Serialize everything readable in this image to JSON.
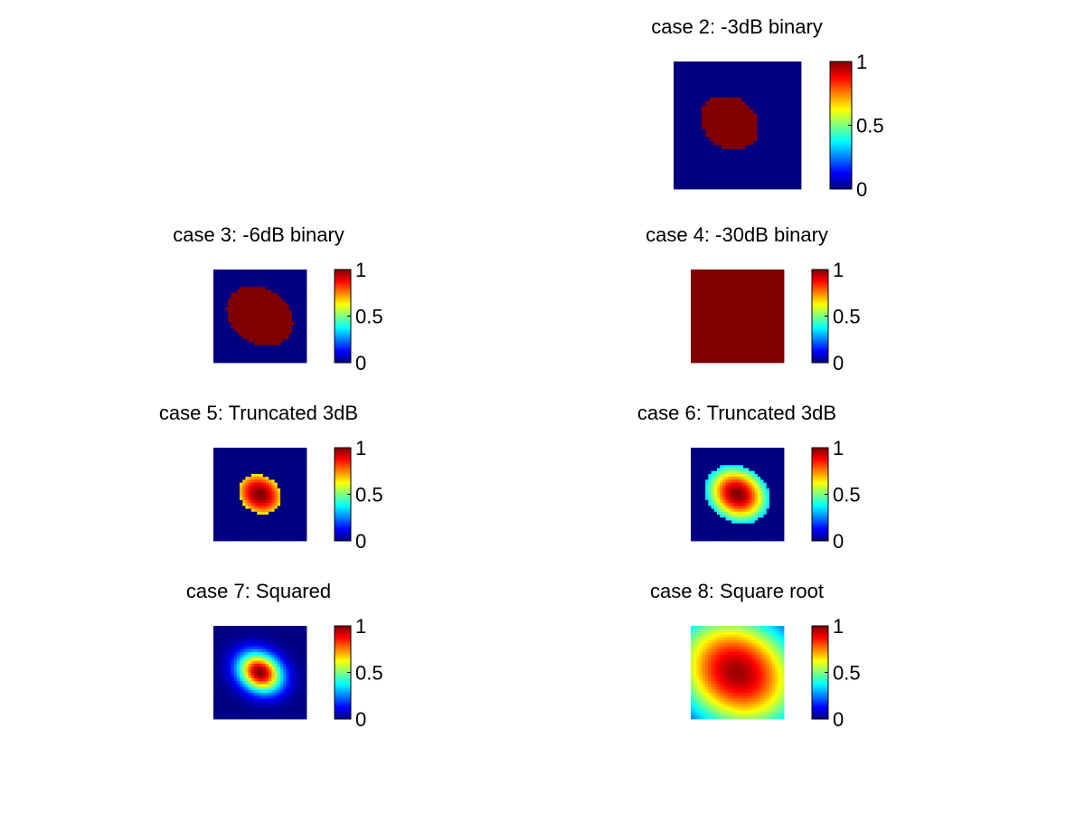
{
  "chart_data": [
    {
      "type": "heatmap",
      "title": "case 2: -3dB binary",
      "pattern": "binary ellipse, medium",
      "colorbar": {
        "colormap": "jet",
        "min": 0,
        "max": 1,
        "ticks": [
          "0",
          "0.5",
          "1"
        ]
      }
    },
    {
      "type": "heatmap",
      "title": "case 3: -6dB binary",
      "pattern": "binary ellipse, large",
      "colorbar": {
        "colormap": "jet",
        "min": 0,
        "max": 1,
        "ticks": [
          "0",
          "0.5",
          "1"
        ]
      }
    },
    {
      "type": "heatmap",
      "title": "case 4: -30dB binary",
      "pattern": "uniform value 1",
      "colorbar": {
        "colormap": "jet",
        "min": 0,
        "max": 1,
        "ticks": [
          "0",
          "0.5",
          "1"
        ]
      }
    },
    {
      "type": "heatmap",
      "title": "case 5: Truncated 3dB",
      "pattern": "truncated gaussian, 3dB",
      "colorbar": {
        "colormap": "jet",
        "min": 0,
        "max": 1,
        "ticks": [
          "0",
          "0.5",
          "1"
        ]
      }
    },
    {
      "type": "heatmap",
      "title": "case 6: Truncated 3dB",
      "pattern": "truncated gaussian, wider",
      "colorbar": {
        "colormap": "jet",
        "min": 0,
        "max": 1,
        "ticks": [
          "0",
          "0.5",
          "1"
        ]
      }
    },
    {
      "type": "heatmap",
      "title": "case 7: Squared",
      "pattern": "gaussian squared",
      "colorbar": {
        "colormap": "jet",
        "min": 0,
        "max": 1,
        "ticks": [
          "0",
          "0.5",
          "1"
        ]
      }
    },
    {
      "type": "heatmap",
      "title": "case 8: Square root",
      "pattern": "gaussian square root",
      "colorbar": {
        "colormap": "jet",
        "min": 0,
        "max": 1,
        "ticks": [
          "0",
          "0.5",
          "1"
        ]
      }
    }
  ]
}
